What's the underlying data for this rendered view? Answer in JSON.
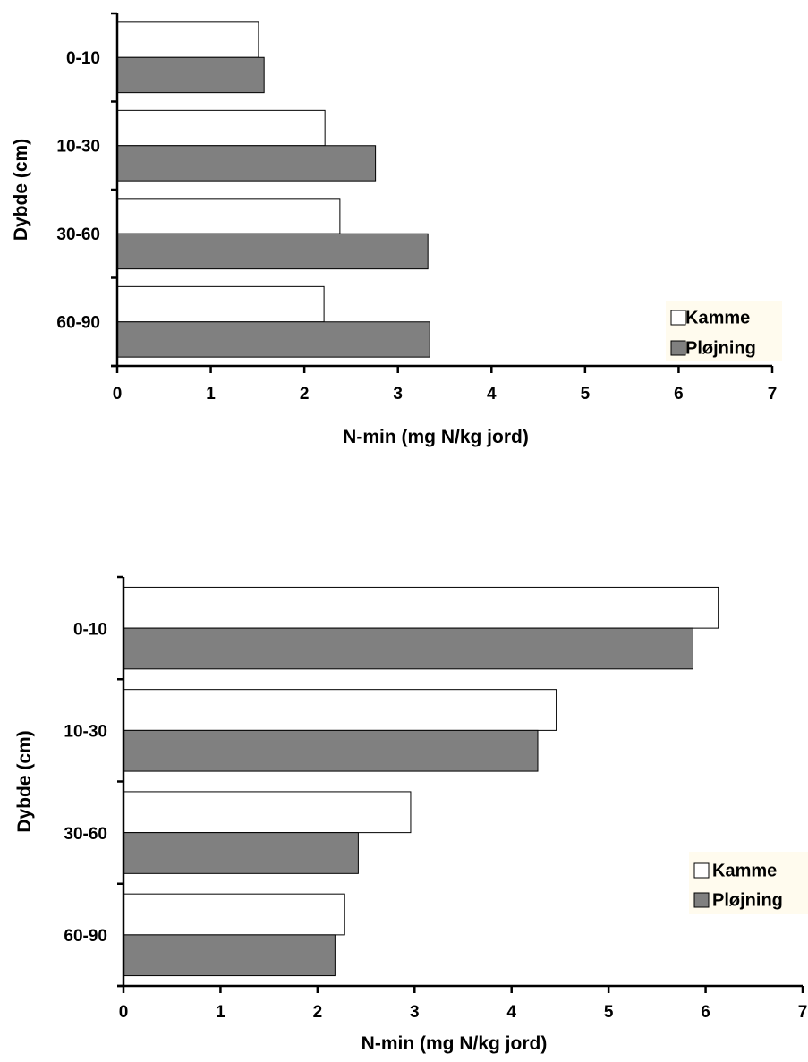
{
  "chart_data": [
    {
      "type": "bar",
      "orientation": "horizontal",
      "categories": [
        "0-10",
        "10-30",
        "30-60",
        "60-90"
      ],
      "series": [
        {
          "name": "Kamme",
          "values": [
            1.51,
            2.22,
            2.38,
            2.21
          ]
        },
        {
          "name": "Pløjning",
          "values": [
            1.57,
            2.76,
            3.32,
            3.34
          ]
        }
      ],
      "xlabel": "N-min (mg N/kg jord)",
      "ylabel": "Dybde (cm)",
      "xlim": [
        0,
        7
      ],
      "xticks": [
        "0",
        "1",
        "2",
        "3",
        "4",
        "5",
        "6",
        "7"
      ],
      "grid": false,
      "legend_position": "bottom-right"
    },
    {
      "type": "bar",
      "orientation": "horizontal",
      "categories": [
        "0-10",
        "10-30",
        "30-60",
        "60-90"
      ],
      "series": [
        {
          "name": "Kamme",
          "values": [
            6.13,
            4.46,
            2.96,
            2.28
          ]
        },
        {
          "name": "Pløjning",
          "values": [
            5.87,
            4.27,
            2.42,
            2.18
          ]
        }
      ],
      "xlabel": "N-min (mg N/kg jord)",
      "ylabel": "Dybde (cm)",
      "xlim": [
        0,
        7
      ],
      "xticks": [
        "0",
        "1",
        "2",
        "3",
        "4",
        "5",
        "6",
        "7"
      ],
      "grid": false,
      "legend_position": "bottom-right"
    }
  ],
  "colors": {
    "kamme_fill": "#ffffff",
    "ploejning_fill": "#808080",
    "legend_background": "#fffbee",
    "axis": "#000000"
  }
}
